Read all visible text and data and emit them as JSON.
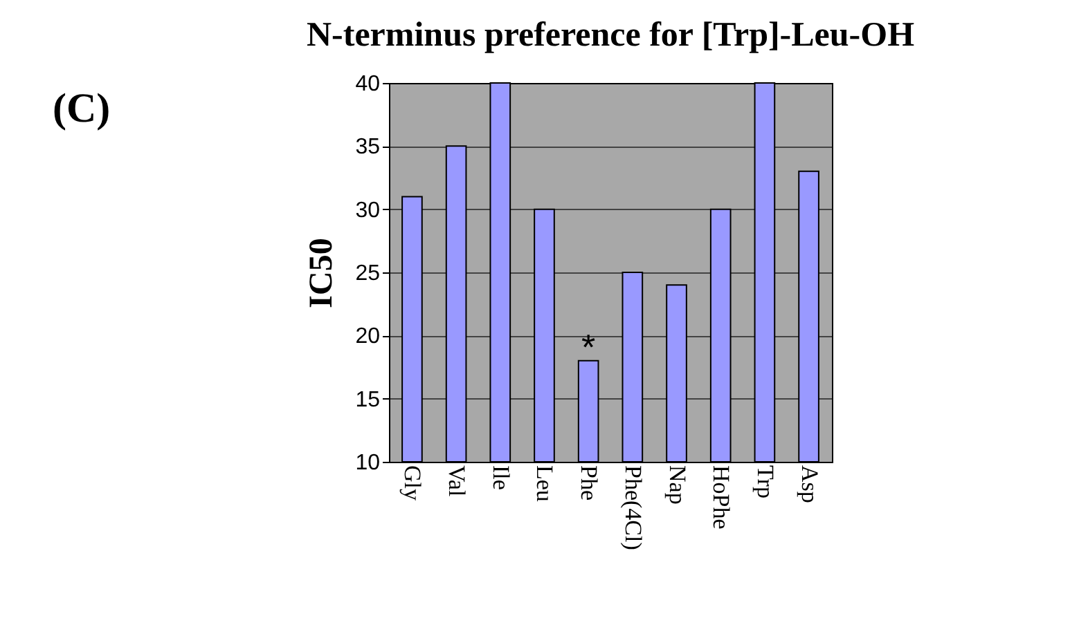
{
  "chart_data": {
    "type": "bar",
    "title": "N-terminus preference for [Trp]-Leu-OH",
    "ylabel": "IC50",
    "annotations": [
      "(C)",
      {
        "text": "*",
        "x": "Phe",
        "y": 18
      }
    ],
    "categories": [
      "Gly",
      "Val",
      "Ile",
      "Leu",
      "Phe",
      "Phe(4Cl)",
      "Nap",
      "HoPhe",
      "Trp",
      "Asp"
    ],
    "values": [
      31,
      35,
      40,
      30,
      18,
      25,
      24,
      30,
      40,
      33
    ],
    "color": "#9999ff",
    "ylim": [
      10,
      40
    ],
    "yticks": [
      10,
      15,
      20,
      25,
      30,
      35,
      40
    ],
    "grid": "y"
  }
}
